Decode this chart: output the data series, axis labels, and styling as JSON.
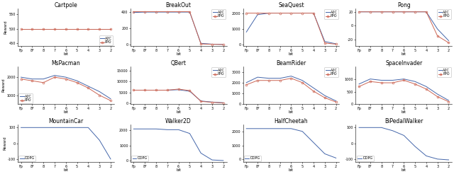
{
  "x_ticks": [
    "Fp",
    "8*",
    "8",
    "7",
    "6",
    "5",
    "4",
    "3",
    "2"
  ],
  "x_vals": [
    0,
    1,
    2,
    3,
    4,
    5,
    6,
    7,
    8
  ],
  "subplots": [
    {
      "title": "Cartpole",
      "row": 0,
      "col": 0,
      "algo": "a2c_ppo",
      "ylim": [
        440,
        570
      ],
      "yticks": [
        450,
        500,
        550
      ],
      "legend_loc": "lower right",
      "a2c": [
        500,
        500,
        500,
        500,
        500,
        500,
        500,
        500,
        500
      ],
      "ppo": [
        500,
        500,
        500,
        500,
        500,
        500,
        500,
        500,
        500
      ]
    },
    {
      "title": "BreakOut",
      "row": 0,
      "col": 1,
      "algo": "a2c_ppo",
      "ylim": [
        -20,
        440
      ],
      "yticks": [
        0,
        200,
        400
      ],
      "legend_loc": "upper right",
      "a2c": [
        390,
        395,
        395,
        395,
        395,
        395,
        15,
        5,
        2
      ],
      "ppo": [
        400,
        400,
        400,
        400,
        400,
        400,
        8,
        3,
        1
      ]
    },
    {
      "title": "SeaQuest",
      "row": 0,
      "col": 2,
      "algo": "a2c_ppo",
      "ylim": [
        -100,
        2300
      ],
      "yticks": [
        0,
        1000,
        2000
      ],
      "legend_loc": "upper right",
      "a2c": [
        800,
        1900,
        2000,
        2000,
        2000,
        2000,
        2000,
        200,
        50
      ],
      "ppo": [
        2000,
        2000,
        2000,
        2000,
        2000,
        2000,
        2000,
        100,
        30
      ]
    },
    {
      "title": "Pong",
      "row": 0,
      "col": 3,
      "algo": "a2c_ppo",
      "ylim": [
        -30,
        25
      ],
      "yticks": [
        -20,
        0,
        20
      ],
      "legend_loc": "upper right",
      "a2c": [
        20,
        20,
        20,
        20,
        20,
        20,
        20,
        -5,
        -22
      ],
      "ppo": [
        20,
        20,
        20,
        20,
        20,
        20,
        20,
        -15,
        -25
      ]
    },
    {
      "title": "MsPacman",
      "row": 1,
      "col": 0,
      "algo": "a2c_ppo",
      "ylim": [
        500,
        2600
      ],
      "yticks": [
        1000,
        2000
      ],
      "legend_loc": "lower left",
      "a2c": [
        2000,
        1900,
        1900,
        2100,
        2000,
        1800,
        1500,
        1200,
        800
      ],
      "ppo": [
        1900,
        1800,
        1700,
        2000,
        1900,
        1700,
        1400,
        1000,
        700
      ]
    },
    {
      "title": "QBert",
      "row": 1,
      "col": 1,
      "algo": "a2c_ppo",
      "ylim": [
        -500,
        17000
      ],
      "yticks": [
        0,
        5000,
        10000,
        15000
      ],
      "legend_loc": "upper right",
      "a2c": [
        6000,
        6000,
        6000,
        6000,
        6200,
        5500,
        1000,
        500,
        200
      ],
      "ppo": [
        6000,
        6000,
        6000,
        6000,
        6500,
        5800,
        800,
        400,
        100
      ]
    },
    {
      "title": "BeamRider",
      "row": 1,
      "col": 2,
      "algo": "a2c_ppo",
      "ylim": [
        0,
        3500
      ],
      "yticks": [
        0,
        1000,
        2000,
        3000
      ],
      "legend_loc": "upper right",
      "a2c": [
        2000,
        2500,
        2400,
        2400,
        2600,
        2200,
        1500,
        800,
        300
      ],
      "ppo": [
        1800,
        2200,
        2200,
        2200,
        2400,
        2000,
        1200,
        600,
        200
      ]
    },
    {
      "title": "SpaceInvader",
      "row": 1,
      "col": 3,
      "algo": "a2c_ppo",
      "ylim": [
        0,
        1500
      ],
      "yticks": [
        0,
        500,
        1000
      ],
      "legend_loc": "upper right",
      "a2c": [
        800,
        1000,
        950,
        950,
        1000,
        900,
        700,
        400,
        150
      ],
      "ppo": [
        700,
        900,
        850,
        850,
        950,
        800,
        600,
        300,
        100
      ]
    },
    {
      "title": "MountainCar",
      "row": 2,
      "col": 0,
      "algo": "ddpg",
      "ylim": [
        -120,
        120
      ],
      "yticks": [
        -100,
        0,
        100
      ],
      "legend_loc": "lower left",
      "ddpg": [
        100,
        100,
        100,
        100,
        100,
        100,
        100,
        20,
        -100
      ]
    },
    {
      "title": "Walker2D",
      "row": 2,
      "col": 1,
      "algo": "ddpg",
      "ylim": [
        -100,
        2400
      ],
      "yticks": [
        0,
        1000,
        2000
      ],
      "legend_loc": "lower left",
      "ddpg": [
        2100,
        2100,
        2100,
        2050,
        2050,
        1800,
        500,
        50,
        10
      ]
    },
    {
      "title": "HalfCheetah",
      "row": 2,
      "col": 2,
      "algo": "ddpg",
      "ylim": [
        -200,
        2500
      ],
      "yticks": [
        0,
        1000,
        2000
      ],
      "legend_loc": "lower left",
      "ddpg": [
        2200,
        2200,
        2200,
        2200,
        2200,
        2000,
        1200,
        400,
        100
      ]
    },
    {
      "title": "BiPedalWalker",
      "row": 2,
      "col": 3,
      "algo": "ddpg",
      "ylim": [
        -120,
        120
      ],
      "yticks": [
        -100,
        0,
        100
      ],
      "legend_loc": "lower left",
      "ddpg": [
        100,
        100,
        100,
        80,
        50,
        -20,
        -80,
        -100,
        -105
      ]
    }
  ],
  "color_a2c": "#4466aa",
  "color_ppo": "#cc6655",
  "color_ddpg": "#4466aa",
  "bg_color": "#ffffff"
}
